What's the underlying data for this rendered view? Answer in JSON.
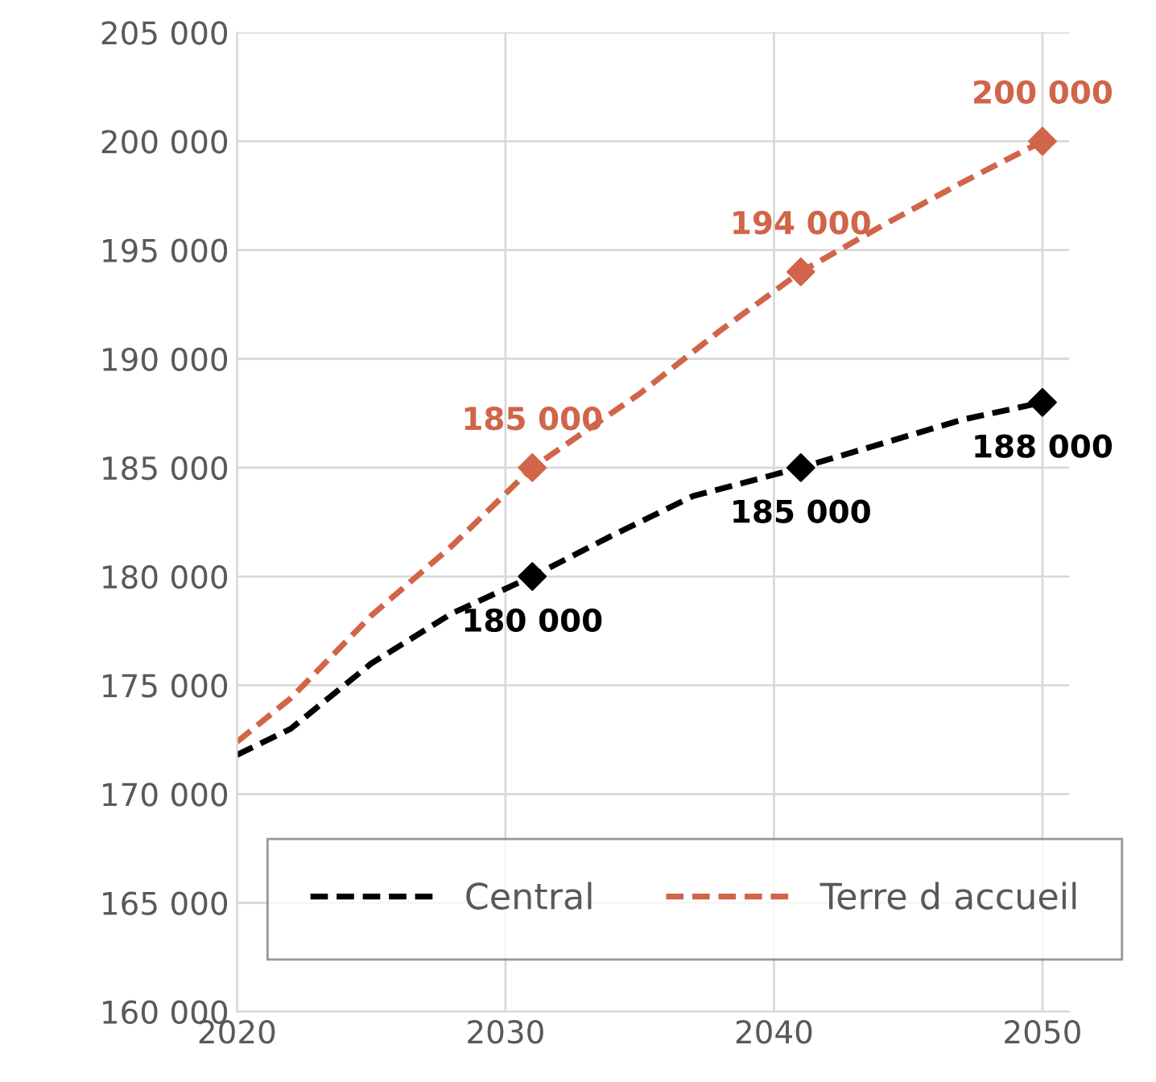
{
  "chart_data": {
    "type": "line",
    "xlim": [
      2020,
      2051
    ],
    "xticks": [
      2020,
      2030,
      2040,
      2050
    ],
    "ylim": [
      160000,
      205000
    ],
    "yticks": [
      {
        "value": 160000,
        "label": "160 000"
      },
      {
        "value": 165000,
        "label": "165 000"
      },
      {
        "value": 170000,
        "label": "170 000"
      },
      {
        "value": 175000,
        "label": "175 000"
      },
      {
        "value": 180000,
        "label": "180 000"
      },
      {
        "value": 185000,
        "label": "185 000"
      },
      {
        "value": 190000,
        "label": "190 000"
      },
      {
        "value": 195000,
        "label": "195 000"
      },
      {
        "value": 200000,
        "label": "200 000"
      },
      {
        "value": 205000,
        "label": "205 000"
      }
    ],
    "grid": true,
    "legend": "bottom",
    "line_style": "dashed",
    "series": [
      {
        "name": "Central",
        "color": "#000000",
        "marker": "none",
        "x": [
          2020,
          2022,
          2025,
          2028,
          2031,
          2034,
          2037,
          2041,
          2044,
          2047,
          2050
        ],
        "values": [
          171800,
          173000,
          176000,
          178300,
          180000,
          181900,
          183700,
          185000,
          186100,
          187200,
          188000
        ]
      },
      {
        "name": "Terre d accueil",
        "color": "#d0654a",
        "marker": "none",
        "x": [
          2020,
          2022,
          2025,
          2028,
          2031,
          2035,
          2038,
          2041,
          2044,
          2047,
          2050
        ],
        "values": [
          172400,
          174400,
          178200,
          181400,
          185000,
          188400,
          191300,
          194000,
          196100,
          198100,
          200000
        ]
      },
      {
        "type": "scatter",
        "color": "#000000",
        "marker": "diamond",
        "x": [
          2031,
          2041,
          2050
        ],
        "values": [
          180000,
          185000,
          188000
        ],
        "value_labels": [
          "180 000",
          "185 000",
          "188 000"
        ]
      },
      {
        "type": "scatter",
        "color": "#d0654a",
        "marker": "diamond",
        "x": [
          2031,
          2041,
          2050
        ],
        "values": [
          185000,
          194000,
          200000
        ],
        "value_labels": [
          "185 000",
          "194 000",
          "200 000"
        ]
      }
    ]
  }
}
